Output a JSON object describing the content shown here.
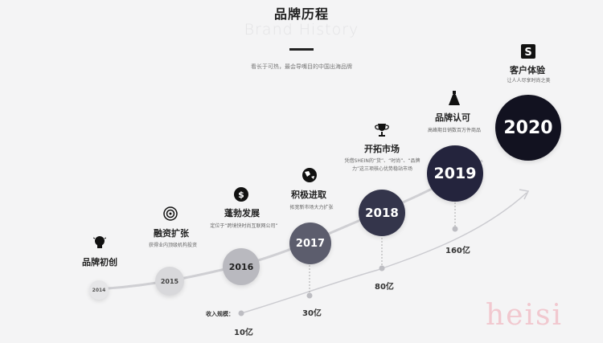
{
  "header": {
    "title": "品牌历程",
    "subtitle_en": "Brand History",
    "slogan": "看长于可热，最会导嘴目的中国出海品牌"
  },
  "milestones": [
    {
      "year": "2014",
      "title": "品牌初创",
      "desc": "",
      "icon": "lightbulb-icon"
    },
    {
      "year": "2015",
      "title": "融资扩张",
      "desc": "获得业内顶级机构投资",
      "icon": "target-icon"
    },
    {
      "year": "2016",
      "title": "蓬勃发展",
      "desc": "定位于“跨境快时尚互联网公司”",
      "icon": "globe-dollar-icon"
    },
    {
      "year": "2017",
      "title": "积极进取",
      "desc": "拓宽新市场大力扩张",
      "icon": "globe-icon"
    },
    {
      "year": "2018",
      "title": "开拓市场",
      "desc": "凭借SHEIN的“货”、“时尚”、“品牌力”这三项核心优势稳站市场",
      "icon": "trophy-icon"
    },
    {
      "year": "2019",
      "title": "品牌认可",
      "desc": "高峰期日销数百万件商品",
      "icon": "dress-icon"
    },
    {
      "year": "2020",
      "title": "客户体验",
      "desc": "让人人尽享时尚之美",
      "icon": "shein-s-icon"
    }
  ],
  "revenue": {
    "caption": "收入规模：",
    "points": [
      "10亿",
      "30亿",
      "80亿",
      "160亿"
    ]
  },
  "watermark": "heisi",
  "colors": {
    "c2014": "#e6e6e8",
    "c2015": "#d8d8db",
    "c2016": "#b9b9bf",
    "c2017": "#5c5d6d",
    "c2018": "#34354b",
    "c2019": "#24243d",
    "c2020": "#121220"
  }
}
